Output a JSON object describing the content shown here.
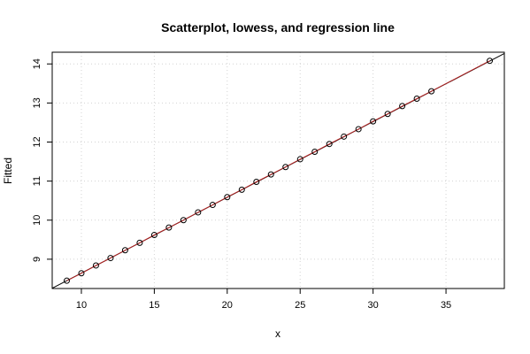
{
  "chart_data": {
    "type": "scatter",
    "title": "Scatterplot, lowess, and regression line",
    "xlabel": "x",
    "ylabel": "Fitted",
    "xlim": [
      8,
      39
    ],
    "ylim": [
      8.25,
      14.3
    ],
    "xticks": [
      10,
      15,
      20,
      25,
      30,
      35
    ],
    "yticks": [
      9,
      10,
      11,
      12,
      13,
      14
    ],
    "grid": true,
    "series": [
      {
        "x": [
          9,
          10,
          11,
          12,
          13,
          14,
          15,
          16,
          17,
          18,
          19,
          20,
          21,
          22,
          23,
          24,
          25,
          26,
          27,
          28,
          29,
          30,
          31,
          32,
          33,
          34,
          38
        ],
        "y": [
          8.45,
          8.64,
          8.84,
          9.03,
          9.23,
          9.42,
          9.62,
          9.81,
          10.0,
          10.2,
          10.39,
          10.59,
          10.78,
          10.98,
          11.17,
          11.36,
          11.56,
          11.75,
          11.95,
          12.14,
          12.33,
          12.53,
          12.72,
          12.92,
          13.11,
          13.3,
          14.08
        ]
      }
    ],
    "regression": {
      "slope": 0.1939,
      "intercept": 6.705
    },
    "colors": {
      "points": "#000000",
      "regression_line": "#000000",
      "lowess_line": "#b22222",
      "grid": "#d3d3d3",
      "frame": "#000000"
    }
  }
}
